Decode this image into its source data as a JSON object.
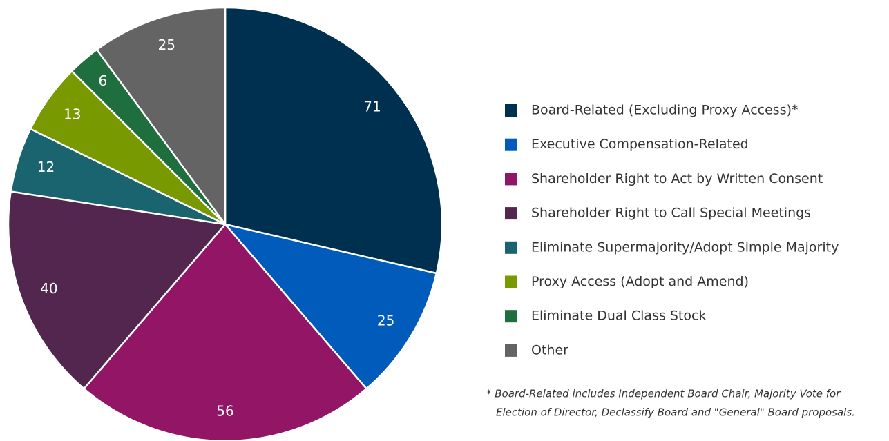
{
  "chart_data": {
    "type": "pie",
    "categories": [
      "Board-Related (Excluding Proxy Access)*",
      "Executive Compensation-Related",
      "Shareholder Right to Act by Written Consent",
      "Shareholder Right to Call Special Meetings",
      "Eliminate Supermajority/Adopt Simple Majority",
      "Proxy Access (Adopt and Amend)",
      "Eliminate Dual Class Stock",
      "Other"
    ],
    "values": [
      71,
      25,
      56,
      40,
      12,
      13,
      6,
      25
    ],
    "colors": [
      "#00304f",
      "#005bbb",
      "#921566",
      "#52264e",
      "#1a6470",
      "#789a00",
      "#1e6f3d",
      "#646464"
    ],
    "legend": "right",
    "footnote": [
      "* Board-Related includes Independent Board Chair, Majority Vote for",
      "Election of Director, Declassify Board and \"General\" Board proposals."
    ]
  }
}
